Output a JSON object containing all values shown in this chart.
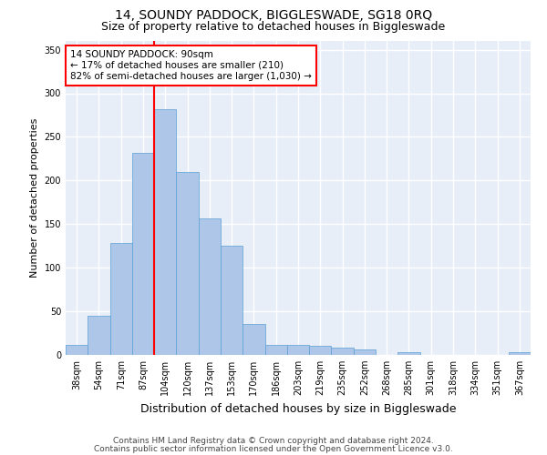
{
  "title1": "14, SOUNDY PADDOCK, BIGGLESWADE, SG18 0RQ",
  "title2": "Size of property relative to detached houses in Biggleswade",
  "xlabel": "Distribution of detached houses by size in Biggleswade",
  "ylabel": "Number of detached properties",
  "bar_labels": [
    "38sqm",
    "54sqm",
    "71sqm",
    "87sqm",
    "104sqm",
    "120sqm",
    "137sqm",
    "153sqm",
    "170sqm",
    "186sqm",
    "203sqm",
    "219sqm",
    "235sqm",
    "252sqm",
    "268sqm",
    "285sqm",
    "301sqm",
    "318sqm",
    "334sqm",
    "351sqm",
    "367sqm"
  ],
  "bar_values": [
    12,
    45,
    128,
    232,
    282,
    210,
    157,
    125,
    35,
    11,
    11,
    10,
    8,
    6,
    0,
    3,
    0,
    0,
    0,
    0,
    3
  ],
  "bar_color": "#aec6e8",
  "bar_edge_color": "#5a9fd4",
  "vline_x_index": 4,
  "vline_color": "red",
  "annotation_text": "14 SOUNDY PADDOCK: 90sqm\n← 17% of detached houses are smaller (210)\n82% of semi-detached houses are larger (1,030) →",
  "annotation_box_color": "white",
  "annotation_box_edge_color": "red",
  "ylim": [
    0,
    360
  ],
  "yticks": [
    0,
    50,
    100,
    150,
    200,
    250,
    300,
    350
  ],
  "footnote1": "Contains HM Land Registry data © Crown copyright and database right 2024.",
  "footnote2": "Contains public sector information licensed under the Open Government Licence v3.0.",
  "background_color": "#e8eef8",
  "grid_color": "white",
  "title1_fontsize": 10,
  "title2_fontsize": 9,
  "xlabel_fontsize": 9,
  "ylabel_fontsize": 8,
  "tick_fontsize": 7,
  "annotation_fontsize": 7.5,
  "footnote_fontsize": 6.5
}
